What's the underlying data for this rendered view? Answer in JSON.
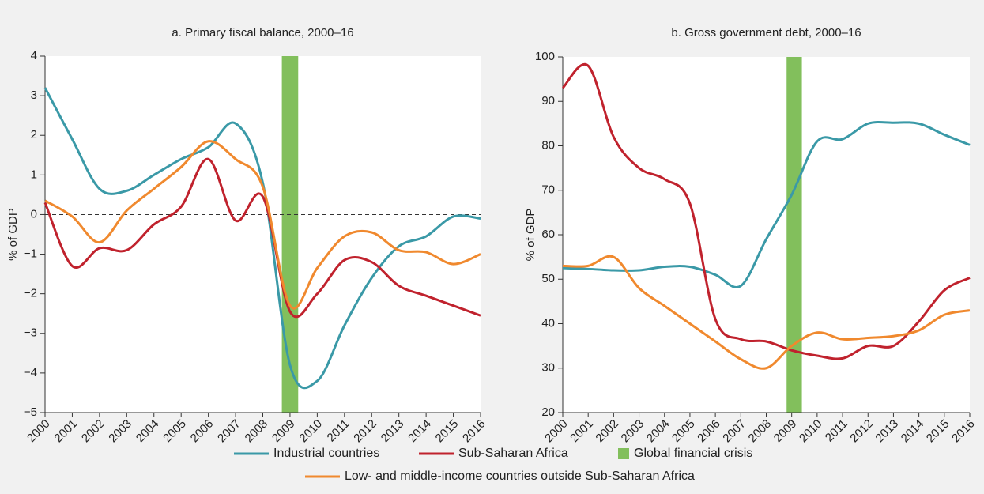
{
  "chart_data": [
    {
      "type": "line",
      "title": "a. Primary fiscal balance, 2000–16",
      "ylabel": "% of GDP",
      "x": [
        2000,
        2001,
        2002,
        2003,
        2004,
        2005,
        2006,
        2007,
        2008,
        2009,
        2010,
        2011,
        2012,
        2013,
        2014,
        2015,
        2016
      ],
      "xlim": [
        2000,
        2016
      ],
      "xticks": [
        2000,
        2001,
        2002,
        2003,
        2004,
        2005,
        2006,
        2007,
        2008,
        2009,
        2010,
        2011,
        2012,
        2013,
        2014,
        2015,
        2016
      ],
      "ylim": [
        -5,
        4
      ],
      "yticks": [
        {
          "value": -5,
          "label": "−5"
        },
        {
          "value": -4,
          "label": "−4"
        },
        {
          "value": -3,
          "label": "−3"
        },
        {
          "value": -2,
          "label": "−2"
        },
        {
          "value": -1,
          "label": "−1"
        },
        0,
        1,
        2,
        3,
        4
      ],
      "hline": 0,
      "crisis": {
        "name": "Global financial crisis",
        "color": "#82bf5c",
        "x": [
          2008.7,
          2009.3
        ]
      },
      "series": [
        {
          "name": "Industrial countries",
          "color": "#3a99a7",
          "values": [
            3.2,
            1.9,
            0.65,
            0.6,
            1.0,
            1.4,
            1.7,
            2.3,
            0.8,
            -3.8,
            -4.2,
            -2.8,
            -1.6,
            -0.8,
            -0.55,
            -0.05,
            -0.1
          ]
        },
        {
          "name": "Sub-Saharan Africa",
          "color": "#c0222d",
          "values": [
            0.3,
            -1.3,
            -0.85,
            -0.9,
            -0.25,
            0.2,
            1.4,
            -0.15,
            0.45,
            -2.45,
            -2.0,
            -1.15,
            -1.2,
            -1.8,
            -2.05,
            -2.3,
            -2.55
          ]
        },
        {
          "name": "Low- and middle-income countries outside Sub-Saharan Africa",
          "color": "#f0892e",
          "values": [
            0.35,
            -0.05,
            -0.7,
            0.1,
            0.65,
            1.2,
            1.85,
            1.4,
            0.7,
            -2.3,
            -1.35,
            -0.55,
            -0.45,
            -0.9,
            -0.95,
            -1.25,
            -1.0
          ]
        }
      ]
    },
    {
      "type": "line",
      "title": "b. Gross government debt, 2000–16",
      "ylabel": "% of GDP",
      "x": [
        2000,
        2001,
        2002,
        2003,
        2004,
        2005,
        2006,
        2007,
        2008,
        2009,
        2010,
        2011,
        2012,
        2013,
        2014,
        2015,
        2016
      ],
      "xlim": [
        2000,
        2016
      ],
      "xticks": [
        2000,
        2001,
        2002,
        2003,
        2004,
        2005,
        2006,
        2007,
        2008,
        2009,
        2010,
        2011,
        2012,
        2013,
        2014,
        2015,
        2016
      ],
      "ylim": [
        20,
        100
      ],
      "yticks": [
        20,
        30,
        40,
        50,
        60,
        70,
        80,
        90,
        100
      ],
      "crisis": {
        "name": "Global financial crisis",
        "color": "#82bf5c",
        "x": [
          2008.8,
          2009.4
        ]
      },
      "series": [
        {
          "name": "Industrial countries",
          "color": "#3a99a7",
          "values": [
            52.5,
            52.3,
            52,
            52,
            52.8,
            52.8,
            51,
            48.5,
            59,
            69,
            81,
            81.5,
            85,
            85.2,
            85,
            82.5,
            80.2
          ]
        },
        {
          "name": "Sub-Saharan Africa",
          "color": "#c0222d",
          "values": [
            93,
            98,
            82,
            75,
            72.5,
            67,
            41,
            36.5,
            36,
            34,
            32.8,
            32.2,
            35,
            35,
            40.5,
            47.5,
            50.3
          ]
        },
        {
          "name": "Low- and middle-income countries outside Sub-Saharan Africa",
          "color": "#f0892e",
          "values": [
            53,
            53,
            55,
            48,
            44,
            40,
            36,
            32,
            30,
            35,
            38,
            36.5,
            36.8,
            37.2,
            38.5,
            42,
            43
          ]
        }
      ]
    }
  ]
}
